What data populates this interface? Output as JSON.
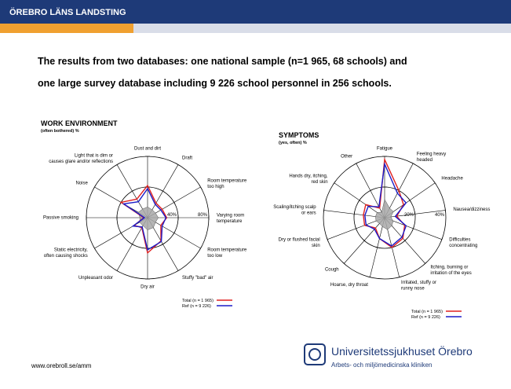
{
  "header": {
    "org": "ÖREBRO LÄNS LANDSTING",
    "heading": [
      "The results from two databases: one national sample (n=1 965, 68 schools) and",
      "one large survey database including 9 226 school personnel in 256 schools."
    ]
  },
  "footer": {
    "url": "www.orebroll.se/amm",
    "logo_title": "Universitetssjukhuset Örebro",
    "logo_subtitle": "Arbets- och miljömedicinska kliniken"
  },
  "chart_data": [
    {
      "type": "radar",
      "title": "WORK ENVIRONMENT",
      "subtitle": "(often bothered) %",
      "categories": [
        "Dust and dirt",
        "Draft",
        "Room temperature\ntoo high",
        "Varying room\ntemperature",
        "Room temperature\ntoo low",
        "Stuffy \"bad\" air",
        "Dry air",
        "Unpleasant odor",
        "Static electricity,\noften causing shocks",
        "Passive smoking",
        "Noise",
        "Light that is dim or\ncauses glare and/or reflections"
      ],
      "rlim": [
        0,
        80
      ],
      "rticks": [
        {
          "value": 40,
          "label": "40%"
        },
        {
          "value": 80,
          "label": "80%"
        }
      ],
      "series": [
        {
          "color": "#a8a8a8",
          "values": [
            14,
            12,
            12,
            14,
            12,
            15,
            16,
            12,
            12,
            10,
            14,
            13
          ]
        },
        {
          "name": "Total (n = 1 965)",
          "color": "#e02020",
          "values": [
            42,
            22,
            22,
            25,
            20,
            35,
            46,
            15,
            20,
            5,
            40,
            28
          ]
        },
        {
          "name": "Ref (n = 9 226)",
          "color": "#1c1cc8",
          "values": [
            38,
            20,
            20,
            24,
            22,
            36,
            42,
            14,
            22,
            4,
            36,
            24
          ]
        }
      ]
    },
    {
      "type": "radar",
      "title": "SYMPTOMS",
      "subtitle": "(yes, often) %",
      "categories": [
        "Fatigue",
        "Feeling heavy\nheaded",
        "Headache",
        "Nausea/dizziness",
        "Difficulties\nconcentrating",
        "Itching, burning or\nirritation of the eyes",
        "Irritated, stuffy or\nrunny nose",
        "Hoarse, dry throat",
        "Cough",
        "Dry or flushed facial\nskin",
        "Scaling/itching scalp\nor ears",
        "Hands dry, itching,\nred skin",
        "Other"
      ],
      "rlim": [
        0,
        40
      ],
      "rticks": [
        {
          "value": 20,
          "label": "20%"
        },
        {
          "value": 40,
          "label": "40%"
        }
      ],
      "series": [
        {
          "color": "#a8a8a8",
          "values": [
            12,
            7,
            7,
            4,
            6,
            7,
            8,
            6,
            5,
            6,
            6,
            6,
            4
          ]
        },
        {
          "name": "Total (n = 1 965)",
          "color": "#e02020",
          "values": [
            38,
            20,
            15,
            8,
            14,
            18,
            20,
            14,
            9,
            14,
            14,
            15,
            7
          ]
        },
        {
          "name": "Ref (n = 9 226)",
          "color": "#1c1cc8",
          "values": [
            35,
            18,
            17,
            7,
            15,
            17,
            19,
            14,
            10,
            13,
            13,
            13,
            8
          ]
        }
      ]
    }
  ]
}
